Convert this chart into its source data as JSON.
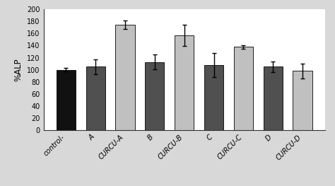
{
  "categories": [
    "control-",
    "A",
    "CURCU-A",
    "B",
    "CURCU-B",
    "C",
    "CURCU-C",
    "D",
    "CURCU-D"
  ],
  "values": [
    100,
    105,
    175,
    113,
    157,
    108,
    138,
    105,
    98
  ],
  "errors": [
    3,
    12,
    7,
    12,
    18,
    20,
    3,
    9,
    12
  ],
  "bar_colors": [
    "#111111",
    "#505050",
    "#c0c0c0",
    "#505050",
    "#c0c0c0",
    "#505050",
    "#c0c0c0",
    "#505050",
    "#c0c0c0"
  ],
  "bar_edgecolors": [
    "#000000",
    "#000000",
    "#000000",
    "#000000",
    "#000000",
    "#000000",
    "#000000",
    "#000000",
    "#000000"
  ],
  "ylabel": "%ALP",
  "ylim": [
    0,
    200
  ],
  "yticks": [
    0,
    20,
    40,
    60,
    80,
    100,
    120,
    140,
    160,
    180,
    200
  ],
  "background_color": "#d8d8d8",
  "plot_bg_color": "#ffffff",
  "tick_label_fontsize": 7,
  "ylabel_fontsize": 8.5,
  "bar_width": 0.65
}
